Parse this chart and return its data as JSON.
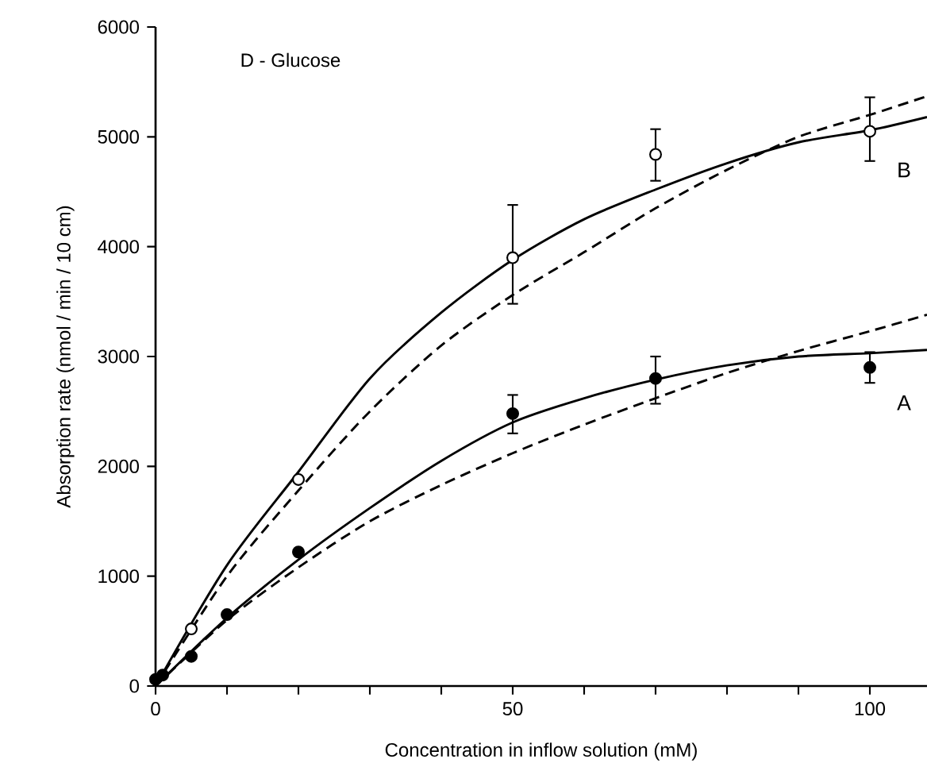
{
  "chart_data": {
    "type": "line",
    "xlabel": "Concentration in inflow solution (mM)",
    "ylabel": "Absorption rate  (nmol / min / 10 cm)",
    "xlim": [
      0,
      108
    ],
    "ylim": [
      0,
      6000
    ],
    "xticks": [
      0,
      {
        "value": 10,
        "label": null
      },
      {
        "value": 20,
        "label": null
      },
      {
        "value": 30,
        "label": null
      },
      {
        "value": 40,
        "label": null
      },
      50,
      {
        "value": 60,
        "label": null
      },
      {
        "value": 70,
        "label": null
      },
      {
        "value": 80,
        "label": null
      },
      {
        "value": 90,
        "label": null
      },
      100
    ],
    "yticks": [
      0,
      1000,
      2000,
      3000,
      4000,
      5000,
      6000
    ],
    "series": [
      {
        "name": "B",
        "color": "#000000",
        "line_style": "solid",
        "marker": "none",
        "x": [
          0,
          10,
          20,
          30,
          40,
          50,
          60,
          70,
          80,
          90,
          100,
          108
        ],
        "values": [
          0,
          1100,
          1950,
          2800,
          3400,
          3880,
          4250,
          4520,
          4760,
          4950,
          5060,
          5180
        ]
      },
      {
        "color": "#000000",
        "line_style": "dashed",
        "marker": "none",
        "x": [
          0,
          10,
          20,
          30,
          40,
          50,
          60,
          70,
          80,
          90,
          100,
          108
        ],
        "values": [
          0,
          1000,
          1780,
          2500,
          3100,
          3560,
          3950,
          4350,
          4700,
          5000,
          5200,
          5370
        ]
      },
      {
        "name": "A",
        "color": "#000000",
        "line_style": "solid",
        "marker": "none",
        "x": [
          0,
          10,
          20,
          30,
          40,
          50,
          60,
          70,
          80,
          90,
          100,
          108
        ],
        "values": [
          0,
          620,
          1150,
          1620,
          2050,
          2400,
          2620,
          2790,
          2920,
          3000,
          3030,
          3060
        ]
      },
      {
        "color": "#000000",
        "line_style": "dashed",
        "marker": "none",
        "x": [
          0,
          10,
          20,
          30,
          40,
          50,
          60,
          70,
          80,
          90,
          100,
          108
        ],
        "values": [
          0,
          600,
          1080,
          1500,
          1830,
          2120,
          2380,
          2620,
          2850,
          3050,
          3230,
          3380
        ]
      },
      {
        "type": "scatter",
        "color": "#ffffff",
        "marker": "circle",
        "x": [
          5,
          20,
          50,
          70,
          100
        ],
        "values": [
          520,
          1880,
          3900,
          4840,
          5050
        ],
        "errors": [
          null,
          null,
          [
            3480,
            4380
          ],
          [
            4600,
            5070
          ],
          [
            4780,
            5360
          ]
        ]
      },
      {
        "type": "scatter",
        "color": "#000000",
        "marker": "circle",
        "x": [
          0,
          1,
          5,
          10,
          20,
          50,
          70,
          100
        ],
        "values": [
          60,
          100,
          270,
          650,
          1220,
          2480,
          2800,
          2900
        ],
        "errors": [
          null,
          null,
          null,
          null,
          null,
          [
            2300,
            2650
          ],
          [
            2570,
            3000
          ],
          [
            2760,
            3040
          ]
        ]
      }
    ],
    "annotations": [
      "D - Glucose"
    ]
  }
}
